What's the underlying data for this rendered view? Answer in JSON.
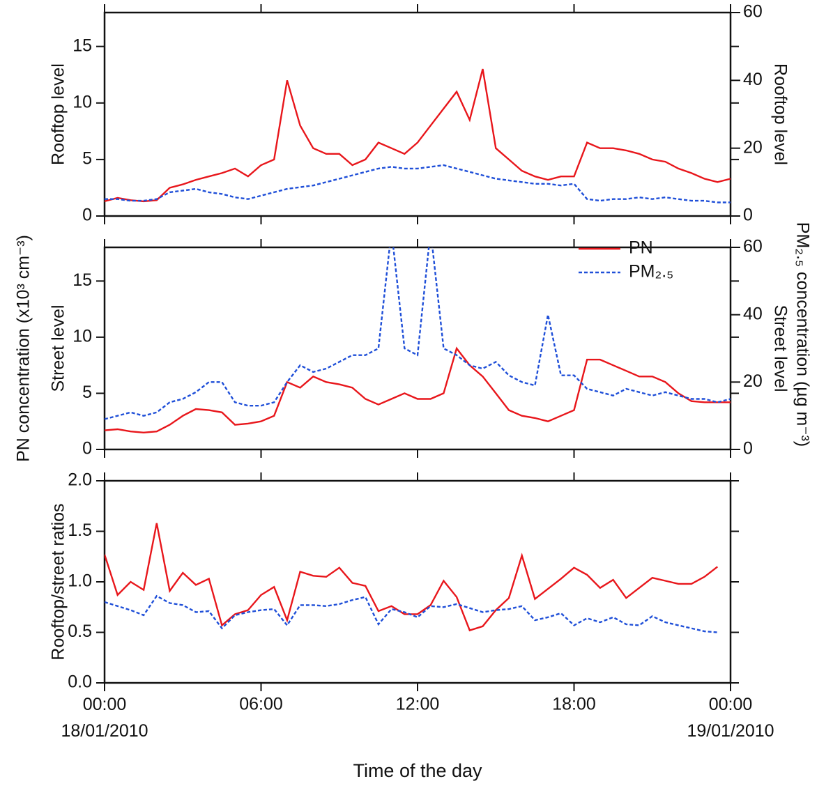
{
  "chart_data": [
    {
      "type": "line",
      "y_label": "Rooftop level",
      "y2_label": "Rooftop level",
      "x": [
        0,
        0.5,
        1,
        1.5,
        2,
        2.5,
        3,
        3.5,
        4,
        4.5,
        5,
        5.5,
        6,
        6.5,
        7,
        7.5,
        8,
        8.5,
        9,
        9.5,
        10,
        10.5,
        11,
        11.5,
        12,
        12.5,
        13,
        13.5,
        14,
        14.5,
        15,
        15.5,
        16,
        16.5,
        17,
        17.5,
        18,
        18.5,
        19,
        19.5,
        20,
        20.5,
        21,
        21.5,
        22,
        22.5,
        23,
        23.5,
        24
      ],
      "xlim": [
        0,
        24
      ],
      "xticks": [
        0,
        6,
        12,
        18,
        24
      ],
      "ylim": [
        0,
        18
      ],
      "yticks": [
        0,
        5,
        10,
        15
      ],
      "y2lim": [
        0,
        60
      ],
      "y2ticks": [
        0,
        20,
        40,
        60
      ],
      "series": [
        {
          "color": "#e8161b",
          "dash": false,
          "values": [
            1.3,
            1.6,
            1.4,
            1.3,
            1.4,
            2.5,
            2.8,
            3.2,
            3.5,
            3.8,
            4.2,
            3.5,
            4.5,
            5,
            12,
            8,
            6,
            5.5,
            5.5,
            4.5,
            5,
            6.5,
            6,
            5.5,
            6.5,
            8,
            9.5,
            11,
            8.5,
            13,
            6,
            5,
            4,
            3.5,
            3.2,
            3.5,
            3.5,
            6.5,
            6,
            6,
            5.8,
            5.5,
            5,
            4.8,
            4.2,
            3.8,
            3.3,
            3,
            3.3
          ]
        },
        {
          "color": "#1f4fd8",
          "dash": true,
          "axis": "y2",
          "values": [
            5,
            5,
            4.5,
            4.5,
            5,
            7,
            7.5,
            8,
            7,
            6.5,
            5.5,
            5,
            6,
            7,
            8,
            8.5,
            9,
            10,
            11,
            12,
            13,
            14,
            14.5,
            14,
            14,
            14.5,
            15,
            14,
            13,
            12,
            11,
            10.5,
            10,
            9.5,
            9.5,
            9,
            9.5,
            5,
            4.5,
            5,
            5,
            5.5,
            5,
            5.5,
            5,
            4.5,
            4.5,
            4,
            4
          ]
        }
      ]
    },
    {
      "type": "line",
      "y_label": "Street level",
      "y2_label": "Street level",
      "legend": "upper-right",
      "x": [
        0,
        0.5,
        1,
        1.5,
        2,
        2.5,
        3,
        3.5,
        4,
        4.5,
        5,
        5.5,
        6,
        6.5,
        7,
        7.5,
        8,
        8.5,
        9,
        9.5,
        10,
        10.5,
        11,
        11.5,
        12,
        12.5,
        13,
        13.5,
        14,
        14.5,
        15,
        15.5,
        16,
        16.5,
        17,
        17.5,
        18,
        18.5,
        19,
        19.5,
        20,
        20.5,
        21,
        21.5,
        22,
        22.5,
        23,
        23.5,
        24
      ],
      "xlim": [
        0,
        24
      ],
      "xticks": [
        0,
        6,
        12,
        18,
        24
      ],
      "ylim": [
        0,
        18
      ],
      "yticks": [
        0,
        5,
        10,
        15
      ],
      "y2lim": [
        0,
        60
      ],
      "y2ticks": [
        0,
        20,
        40,
        60
      ],
      "series": [
        {
          "name": "PN",
          "color": "#e8161b",
          "dash": false,
          "values": [
            1.7,
            1.8,
            1.6,
            1.5,
            1.6,
            2.2,
            3,
            3.6,
            3.5,
            3.3,
            2.2,
            2.3,
            2.5,
            3,
            6,
            5.5,
            6.5,
            6,
            5.8,
            5.5,
            4.5,
            4,
            4.5,
            5,
            4.5,
            4.5,
            5,
            9,
            7.5,
            6.5,
            5,
            3.5,
            3,
            2.8,
            2.5,
            3,
            3.5,
            8,
            8,
            7.5,
            7,
            6.5,
            6.5,
            6,
            5,
            4.3,
            4.2,
            4.2,
            4.2
          ]
        },
        {
          "name": "PM₂.₅",
          "color": "#1f4fd8",
          "dash": true,
          "axis": "y2",
          "values": [
            9,
            10,
            11,
            10,
            11,
            14,
            15,
            17,
            20,
            20,
            14,
            13,
            13,
            14,
            20,
            25,
            23,
            24,
            26,
            28,
            28,
            30,
            65,
            30,
            28,
            65,
            30,
            28,
            25,
            24,
            26,
            22,
            20,
            19,
            40,
            22,
            22,
            18,
            17,
            16,
            18,
            17,
            16,
            17,
            16,
            15,
            15,
            14,
            15
          ]
        }
      ]
    },
    {
      "type": "line",
      "y_label": "Rooftop/street ratios",
      "x_label": "Time of the day",
      "x": [
        0,
        0.5,
        1,
        1.5,
        2,
        2.5,
        3,
        3.5,
        4,
        4.5,
        5,
        5.5,
        6,
        6.5,
        7,
        7.5,
        8,
        8.5,
        9,
        9.5,
        10,
        10.5,
        11,
        11.5,
        12,
        12.5,
        13,
        13.5,
        14,
        14.5,
        15,
        15.5,
        16,
        16.5,
        17,
        17.5,
        18,
        18.5,
        19,
        19.5,
        20,
        20.5,
        21,
        21.5,
        22,
        22.5,
        23,
        23.5
      ],
      "xlim": [
        0,
        24
      ],
      "xticks": [
        {
          "value": 0,
          "label": "00:00\n18/01/2010"
        },
        {
          "value": 6,
          "label": "06:00"
        },
        {
          "value": 12,
          "label": "12:00"
        },
        {
          "value": 18,
          "label": "18:00"
        },
        {
          "value": 24,
          "label": "00:00\n19/01/2010"
        }
      ],
      "ylim": [
        0,
        2
      ],
      "yticks": [
        {
          "value": 0,
          "label": "0.0"
        },
        {
          "value": 0.5,
          "label": "0.5"
        },
        {
          "value": 1,
          "label": "1.0"
        },
        {
          "value": 1.5,
          "label": "1.5"
        },
        {
          "value": 2,
          "label": "2.0"
        }
      ],
      "series": [
        {
          "color": "#e8161b",
          "dash": false,
          "values": [
            1.27,
            0.87,
            1.0,
            0.92,
            1.58,
            0.91,
            1.09,
            0.97,
            1.03,
            0.57,
            0.68,
            0.72,
            0.87,
            0.95,
            0.62,
            1.1,
            1.06,
            1.05,
            1.14,
            0.99,
            0.96,
            0.71,
            0.76,
            0.68,
            0.68,
            0.77,
            1.01,
            0.85,
            0.52,
            0.56,
            0.72,
            0.84,
            1.26,
            0.83,
            0.93,
            1.03,
            1.14,
            1.07,
            0.94,
            1.02,
            0.84,
            0.94,
            1.04,
            1.01,
            0.98,
            0.98,
            1.05,
            1.15
          ]
        },
        {
          "color": "#1f4fd8",
          "dash": true,
          "values": [
            0.8,
            0.76,
            0.72,
            0.67,
            0.86,
            0.79,
            0.77,
            0.7,
            0.71,
            0.54,
            0.67,
            0.7,
            0.72,
            0.73,
            0.57,
            0.77,
            0.77,
            0.76,
            0.78,
            0.82,
            0.85,
            0.58,
            0.73,
            0.7,
            0.65,
            0.76,
            0.75,
            0.78,
            0.74,
            0.7,
            0.72,
            0.73,
            0.76,
            0.62,
            0.65,
            0.69,
            0.57,
            0.64,
            0.6,
            0.65,
            0.58,
            0.57,
            0.66,
            0.6,
            0.57,
            0.54,
            0.51,
            0.5
          ]
        }
      ]
    }
  ],
  "y_label": "PN concentration (x10³ cm⁻³)",
  "y2_label": "PM₂.₅ concentration (µg m⁻³)"
}
